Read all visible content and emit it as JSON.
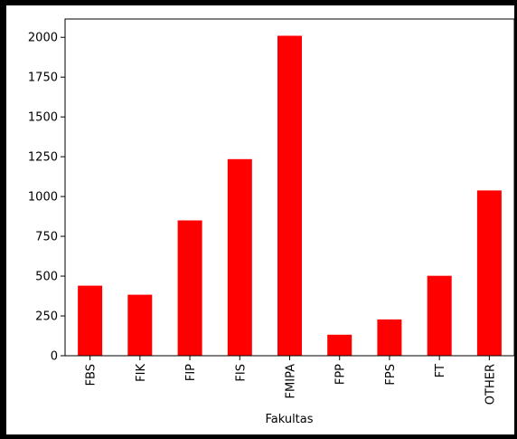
{
  "chart_data": {
    "type": "bar",
    "categories": [
      "FBS",
      "FIK",
      "FIP",
      "FIS",
      "FMIPA",
      "FPP",
      "FPS",
      "FT",
      "OTHER"
    ],
    "values": [
      440,
      383,
      850,
      1235,
      2010,
      132,
      228,
      502,
      1038
    ],
    "title": "",
    "xlabel": "Fakultas",
    "ylabel": "",
    "ylim": [
      0,
      2115
    ],
    "yticks": [
      0,
      250,
      500,
      750,
      1000,
      1250,
      1500,
      1750,
      2000
    ],
    "bar_color": "#ff0000",
    "grid": false,
    "legend": "none"
  }
}
